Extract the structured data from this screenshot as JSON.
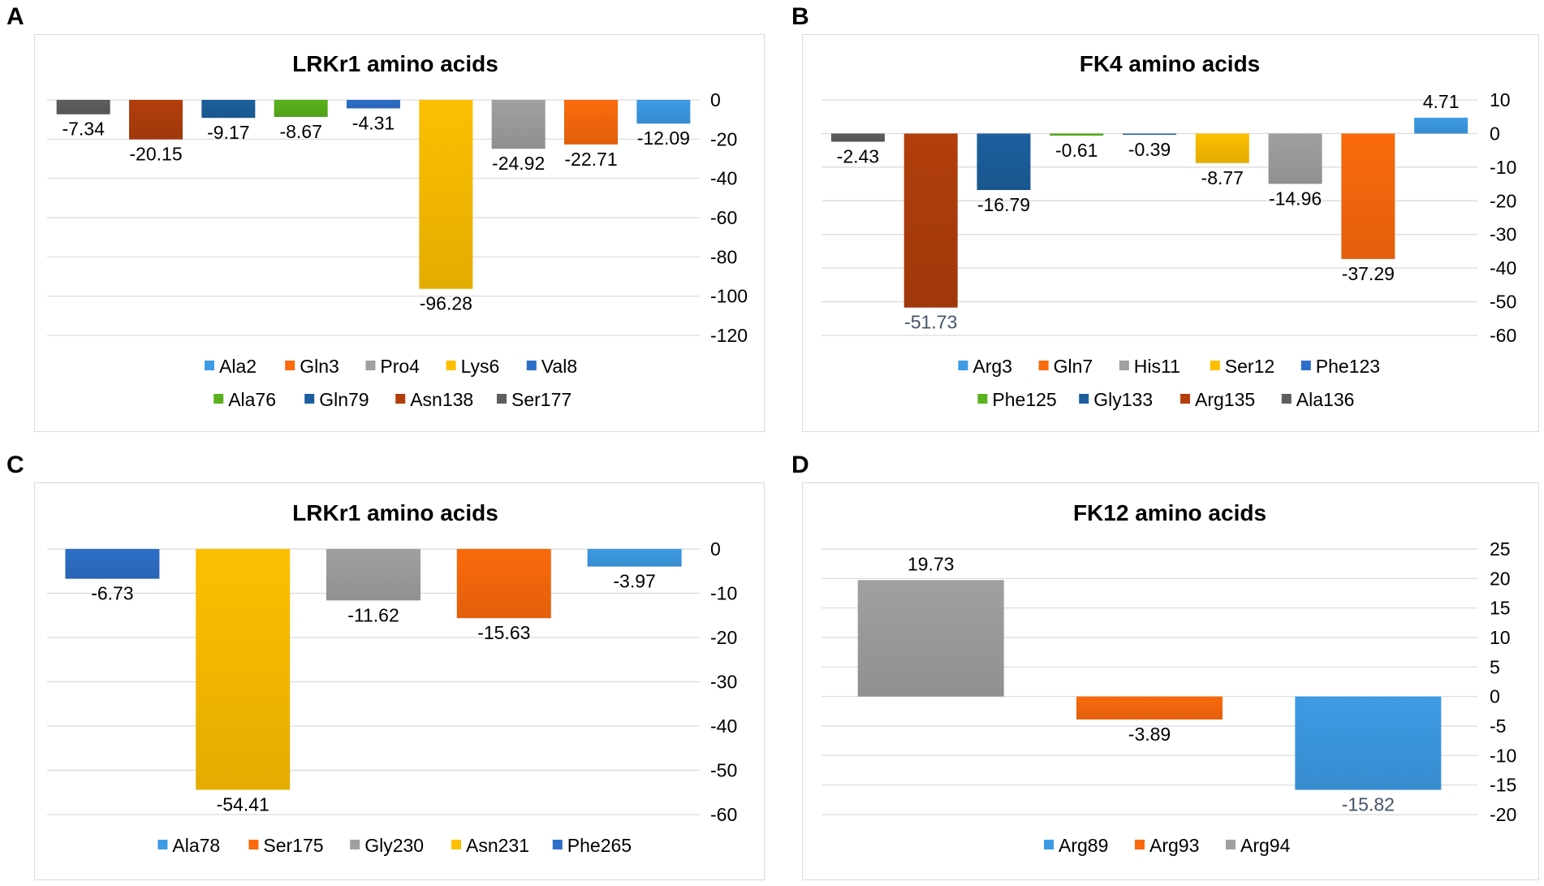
{
  "panel_letters": [
    "A",
    "B",
    "C",
    "D"
  ],
  "colors": {
    "ala_blue": "#3d9be5",
    "orange": "#fb6a0c",
    "gray": "#a0a0a0",
    "yellow": "#fdbf00",
    "royal_blue": "#2d6fc8",
    "green": "#5ab21c",
    "dark_blue": "#1c5f9e",
    "brown": "#b23e0c",
    "dark_gray": "#5e5e5e",
    "gridline": "#d9d9d9",
    "negative_label_blue": "#44546a"
  },
  "chart_data": [
    {
      "type": "bar",
      "title": "LRKr1 amino acids",
      "categories": [
        "Ser177",
        "Asn138",
        "Gln79",
        "Ala76",
        "Val8",
        "Lys6",
        "Pro4",
        "Gln3",
        "Ala2"
      ],
      "values": [
        -7.34,
        -20.15,
        -9.17,
        -8.67,
        -4.31,
        -96.28,
        -24.92,
        -22.71,
        -12.09
      ],
      "value_labels": [
        "-7.34",
        "-20.15",
        "-9.17",
        "-8.67",
        "-4.31",
        "-96.28",
        "-24.92",
        "-22.71",
        "-12.09"
      ],
      "bar_colors": [
        "#5e5e5e",
        "#b23e0c",
        "#1c5f9e",
        "#5ab21c",
        "#2d6fc8",
        "#fdbf00",
        "#a0a0a0",
        "#fb6a0c",
        "#3d9be5"
      ],
      "ylim": [
        -120,
        0
      ],
      "yticks": [
        0,
        -20,
        -40,
        -60,
        -80,
        -100,
        -120
      ],
      "ytick_labels": [
        "0",
        "-20",
        "-40",
        "-60",
        "-80",
        "-100",
        "-120"
      ],
      "axis_side": "right",
      "grid": true,
      "legend_position": "bottom",
      "legend_rows": [
        [
          "Ala2",
          "Gln3",
          "Pro4",
          "Lys6",
          "Val8"
        ],
        [
          "Ala76",
          "Gln79",
          "Asn138",
          "Ser177"
        ]
      ],
      "legend_colors": [
        [
          "#3d9be5",
          "#fb6a0c",
          "#a0a0a0",
          "#fdbf00",
          "#2d6fc8"
        ],
        [
          "#5ab21c",
          "#1c5f9e",
          "#b23e0c",
          "#5e5e5e"
        ]
      ]
    },
    {
      "type": "bar",
      "title": "FK4 amino acids",
      "categories": [
        "Ala136",
        "Arg135",
        "Gly133",
        "Phe125",
        "Phe123",
        "Ser12",
        "His11",
        "Gln7",
        "Arg3"
      ],
      "values": [
        -2.43,
        -51.73,
        -16.79,
        -0.61,
        -0.39,
        -8.77,
        -14.96,
        -37.29,
        4.71
      ],
      "value_labels": [
        "-2.43",
        "-51.73",
        "-16.79",
        "-0.61",
        "-0.39",
        "-8.77",
        "-14.96",
        "-37.29",
        "4.71"
      ],
      "bar_colors": [
        "#5e5e5e",
        "#b23e0c",
        "#1c5f9e",
        "#5ab21c",
        "#2d6fc8",
        "#fdbf00",
        "#a0a0a0",
        "#fb6a0c",
        "#3d9be5"
      ],
      "ylim": [
        -60,
        10
      ],
      "yticks": [
        10,
        0,
        -10,
        -20,
        -30,
        -40,
        -50,
        -60
      ],
      "ytick_labels": [
        "10",
        "0",
        "-10",
        "-20",
        "-30",
        "-40",
        "-50",
        "-60"
      ],
      "axis_side": "right",
      "grid": true,
      "legend_position": "bottom",
      "legend_rows": [
        [
          "Arg3",
          "Gln7",
          "His11",
          "Ser12",
          "Phe123"
        ],
        [
          "Phe125",
          "Gly133",
          "Arg135",
          "Ala136"
        ]
      ],
      "legend_colors": [
        [
          "#3d9be5",
          "#fb6a0c",
          "#a0a0a0",
          "#fdbf00",
          "#2d6fc8"
        ],
        [
          "#5ab21c",
          "#1c5f9e",
          "#b23e0c",
          "#5e5e5e"
        ]
      ]
    },
    {
      "type": "bar",
      "title": "LRKr1 amino acids",
      "categories": [
        "Phe265",
        "Asn231",
        "Gly230",
        "Ser175",
        "Ala78"
      ],
      "values": [
        -6.73,
        -54.41,
        -11.62,
        -15.63,
        -3.97
      ],
      "value_labels": [
        "-6.73",
        "-54.41",
        "-11.62",
        "-15.63",
        "-3.97"
      ],
      "bar_colors": [
        "#2d6fc8",
        "#fdbf00",
        "#a0a0a0",
        "#fb6a0c",
        "#3d9be5"
      ],
      "ylim": [
        -60,
        0
      ],
      "yticks": [
        0,
        -10,
        -20,
        -30,
        -40,
        -50,
        -60
      ],
      "ytick_labels": [
        "0",
        "-10",
        "-20",
        "-30",
        "-40",
        "-50",
        "-60"
      ],
      "axis_side": "right",
      "grid": true,
      "legend_position": "bottom",
      "legend_rows": [
        [
          "Ala78",
          "Ser175",
          "Gly230",
          "Asn231",
          "Phe265"
        ]
      ],
      "legend_colors": [
        [
          "#3d9be5",
          "#fb6a0c",
          "#a0a0a0",
          "#fdbf00",
          "#2d6fc8"
        ]
      ]
    },
    {
      "type": "bar",
      "title": "FK12 amino acids",
      "categories": [
        "Arg94",
        "Arg93",
        "Arg89"
      ],
      "values": [
        19.73,
        -3.89,
        -15.82
      ],
      "value_labels": [
        "19.73",
        "-3.89",
        "-15.82"
      ],
      "bar_colors": [
        "#a0a0a0",
        "#fb6a0c",
        "#3d9be5"
      ],
      "ylim": [
        -20,
        25
      ],
      "yticks": [
        25,
        20,
        15,
        10,
        5,
        0,
        -5,
        -10,
        -15,
        -20
      ],
      "ytick_labels": [
        "25",
        "20",
        "15",
        "10",
        "5",
        "0",
        "-5",
        "-10",
        "-15",
        "-20"
      ],
      "axis_side": "right",
      "grid": true,
      "legend_position": "bottom",
      "legend_rows": [
        [
          "Arg89",
          "Arg93",
          "Arg94"
        ]
      ],
      "legend_colors": [
        [
          "#3d9be5",
          "#fb6a0c",
          "#a0a0a0"
        ]
      ]
    }
  ]
}
